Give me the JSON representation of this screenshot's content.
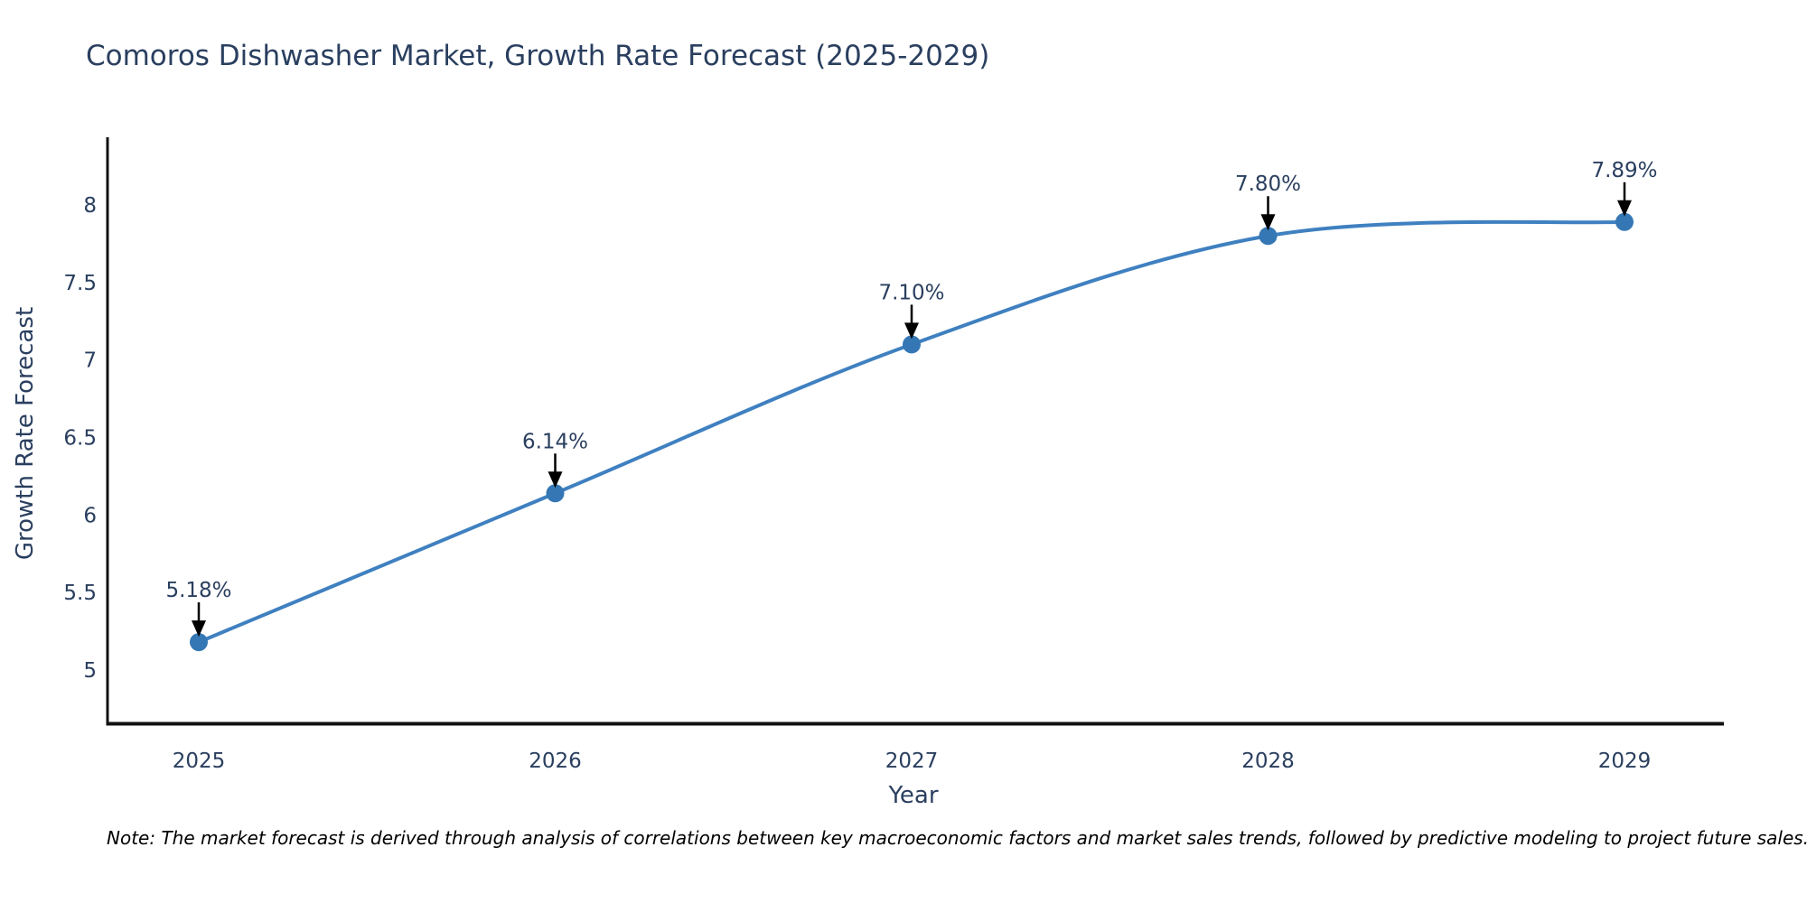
{
  "chart": {
    "title": "Comoros Dishwasher Market, Growth Rate Forecast (2025-2029)",
    "xlabel": "Year",
    "ylabel": "Growth Rate Forecast"
  },
  "chart_data": {
    "type": "line",
    "title": "Comoros Dishwasher Market, Growth Rate Forecast (2025-2029)",
    "xlabel": "Year",
    "ylabel": "Growth Rate Forecast",
    "x": [
      2025,
      2026,
      2027,
      2028,
      2029
    ],
    "y": [
      5.18,
      6.14,
      7.1,
      7.8,
      7.89
    ],
    "point_labels": [
      "5.18%",
      "6.14%",
      "7.10%",
      "7.80%",
      "7.89%"
    ],
    "xtick_labels": [
      "2025",
      "2026",
      "2027",
      "2028",
      "2029"
    ],
    "yticks": [
      5,
      5.5,
      6,
      6.5,
      7,
      7.5,
      8
    ],
    "ytick_labels": [
      "5",
      "5.5",
      "6",
      "6.5",
      "7",
      "7.5",
      "8"
    ],
    "ylim": [
      4.65,
      8.45
    ],
    "line_shape": "spline",
    "grid": false,
    "legend_position": "none",
    "colors": {
      "line": "#3f80c0",
      "marker": "#3577b4",
      "axis": "#111111",
      "tick_text": "#2a3f5f",
      "annotation_text": "#2a3f5f",
      "annotation_arrow": "#000000"
    }
  },
  "note": "Note: The market forecast is derived through analysis of correlations between key macroeconomic factors and market sales trends, followed by predictive modeling to project future sales."
}
